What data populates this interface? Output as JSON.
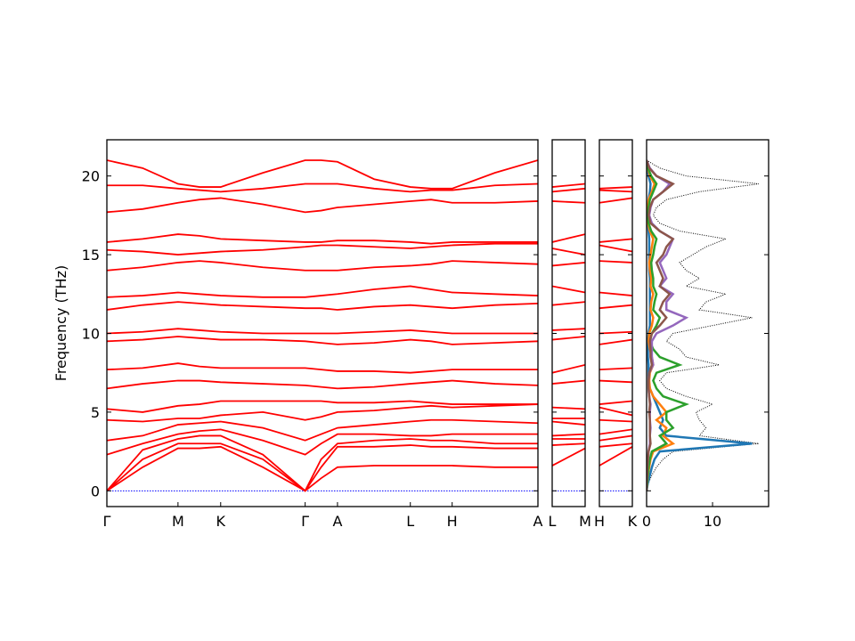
{
  "chart_data": [
    {
      "type": "band",
      "ylabel": "Frequency (THz)",
      "ylim": [
        -1.0,
        22.3
      ],
      "yticks": [
        0,
        5,
        10,
        15,
        20
      ],
      "show_ytick_labels": true,
      "xlim": [
        0,
        1
      ],
      "xticks": [
        {
          "value": 0,
          "label": "Γ"
        },
        {
          "value": 0.165,
          "label": "M"
        },
        {
          "value": 0.264,
          "label": "K"
        },
        {
          "value": 0.46,
          "label": "Γ"
        },
        {
          "value": 0.535,
          "label": "A"
        },
        {
          "value": 0.704,
          "label": "L"
        },
        {
          "value": 0.801,
          "label": "H"
        },
        {
          "value": 1.0,
          "label": "A"
        }
      ],
      "x": [
        0,
        0.083,
        0.165,
        0.215,
        0.264,
        0.362,
        0.46,
        0.497,
        0.535,
        0.62,
        0.704,
        0.752,
        0.801,
        0.9,
        1.0
      ],
      "color": "#ff0000",
      "zero_line": {
        "value": 0,
        "color": "#0000ff"
      },
      "series": [
        {
          "values": [
            0,
            1.5,
            2.7,
            2.7,
            2.8,
            1.5,
            0,
            0.8,
            1.5,
            1.6,
            1.6,
            1.6,
            1.6,
            1.5,
            1.5
          ]
        },
        {
          "values": [
            0,
            2.0,
            3.0,
            3.0,
            3.0,
            2.0,
            0,
            1.5,
            2.8,
            2.8,
            2.9,
            2.8,
            2.8,
            2.7,
            2.7
          ]
        },
        {
          "values": [
            0,
            2.6,
            3.3,
            3.5,
            3.5,
            2.3,
            0,
            2.0,
            3.0,
            3.2,
            3.3,
            3.2,
            3.2,
            3.0,
            3.0
          ]
        },
        {
          "values": [
            2.3,
            3.0,
            3.6,
            3.8,
            3.9,
            3.2,
            2.3,
            3.0,
            3.6,
            3.6,
            3.5,
            3.5,
            3.6,
            3.6,
            3.6
          ]
        },
        {
          "values": [
            3.2,
            3.5,
            4.2,
            4.3,
            4.4,
            4.0,
            3.2,
            3.6,
            4.0,
            4.2,
            4.4,
            4.5,
            4.5,
            4.4,
            4.3
          ]
        },
        {
          "values": [
            4.5,
            4.4,
            4.6,
            4.6,
            4.8,
            5.0,
            4.5,
            4.7,
            5.0,
            5.1,
            5.3,
            5.4,
            5.3,
            5.4,
            5.5
          ]
        },
        {
          "values": [
            5.2,
            5.0,
            5.4,
            5.5,
            5.7,
            5.7,
            5.7,
            5.7,
            5.6,
            5.6,
            5.7,
            5.6,
            5.5,
            5.5,
            5.5
          ]
        },
        {
          "values": [
            6.5,
            6.8,
            7.0,
            7.0,
            6.9,
            6.8,
            6.7,
            6.6,
            6.5,
            6.6,
            6.8,
            6.9,
            7.0,
            6.8,
            6.7
          ]
        },
        {
          "values": [
            7.7,
            7.8,
            8.1,
            7.9,
            7.8,
            7.8,
            7.8,
            7.7,
            7.6,
            7.6,
            7.5,
            7.6,
            7.7,
            7.7,
            7.7
          ]
        },
        {
          "values": [
            9.5,
            9.6,
            9.8,
            9.7,
            9.6,
            9.6,
            9.5,
            9.4,
            9.3,
            9.4,
            9.6,
            9.5,
            9.3,
            9.4,
            9.5
          ]
        },
        {
          "values": [
            10.0,
            10.1,
            10.3,
            10.2,
            10.1,
            10.0,
            10.0,
            10.0,
            10.0,
            10.1,
            10.2,
            10.1,
            10.0,
            10.0,
            10.0
          ]
        },
        {
          "values": [
            11.5,
            11.8,
            12.0,
            11.9,
            11.8,
            11.7,
            11.6,
            11.6,
            11.5,
            11.7,
            11.8,
            11.7,
            11.6,
            11.8,
            11.9
          ]
        },
        {
          "values": [
            12.3,
            12.4,
            12.6,
            12.5,
            12.4,
            12.3,
            12.3,
            12.4,
            12.5,
            12.8,
            13.0,
            12.8,
            12.6,
            12.5,
            12.4
          ]
        },
        {
          "values": [
            14.0,
            14.2,
            14.5,
            14.6,
            14.5,
            14.2,
            14.0,
            14.0,
            14.0,
            14.2,
            14.3,
            14.4,
            14.6,
            14.5,
            14.4
          ]
        },
        {
          "values": [
            15.3,
            15.2,
            15.0,
            15.1,
            15.2,
            15.3,
            15.5,
            15.6,
            15.6,
            15.5,
            15.4,
            15.5,
            15.6,
            15.7,
            15.7
          ]
        },
        {
          "values": [
            15.8,
            16.0,
            16.3,
            16.2,
            16.0,
            15.9,
            15.8,
            15.8,
            15.9,
            15.9,
            15.8,
            15.7,
            15.8,
            15.8,
            15.8
          ]
        },
        {
          "values": [
            17.7,
            17.9,
            18.3,
            18.5,
            18.6,
            18.2,
            17.7,
            17.8,
            18.0,
            18.2,
            18.4,
            18.5,
            18.3,
            18.3,
            18.4
          ]
        },
        {
          "values": [
            19.4,
            19.4,
            19.2,
            19.1,
            19.0,
            19.2,
            19.5,
            19.5,
            19.5,
            19.2,
            19.0,
            19.1,
            19.1,
            19.4,
            19.5
          ]
        },
        {
          "values": [
            21.0,
            20.5,
            19.5,
            19.3,
            19.3,
            20.2,
            21.0,
            21.0,
            20.9,
            19.8,
            19.3,
            19.2,
            19.2,
            20.2,
            21.0
          ]
        }
      ]
    },
    {
      "type": "band",
      "ylim": [
        -1.0,
        22.3
      ],
      "yticks": [
        0,
        5,
        10,
        15,
        20
      ],
      "show_ytick_labels": false,
      "xlim": [
        0,
        1
      ],
      "xticks": [
        {
          "value": 0,
          "label": "L"
        },
        {
          "value": 1,
          "label": "M"
        }
      ],
      "x": [
        0,
        1
      ],
      "color": "#ff0000",
      "zero_line": {
        "value": 0,
        "color": "#0000ff"
      },
      "series": [
        {
          "values": [
            1.6,
            2.7
          ]
        },
        {
          "values": [
            2.9,
            3.0
          ]
        },
        {
          "values": [
            3.3,
            3.3
          ]
        },
        {
          "values": [
            3.5,
            3.6
          ]
        },
        {
          "values": [
            4.4,
            4.2
          ]
        },
        {
          "values": [
            4.6,
            4.6
          ]
        },
        {
          "values": [
            5.3,
            5.2
          ]
        },
        {
          "values": [
            6.8,
            7.0
          ]
        },
        {
          "values": [
            7.5,
            8.0
          ]
        },
        {
          "values": [
            9.6,
            9.8
          ]
        },
        {
          "values": [
            10.2,
            10.3
          ]
        },
        {
          "values": [
            11.8,
            12.0
          ]
        },
        {
          "values": [
            13.0,
            12.6
          ]
        },
        {
          "values": [
            14.3,
            14.5
          ]
        },
        {
          "values": [
            15.4,
            15.0
          ]
        },
        {
          "values": [
            15.8,
            16.3
          ]
        },
        {
          "values": [
            18.4,
            18.3
          ]
        },
        {
          "values": [
            19.0,
            19.2
          ]
        },
        {
          "values": [
            19.3,
            19.5
          ]
        }
      ]
    },
    {
      "type": "band",
      "ylim": [
        -1.0,
        22.3
      ],
      "yticks": [
        0,
        5,
        10,
        15,
        20
      ],
      "show_ytick_labels": false,
      "xlim": [
        0,
        1
      ],
      "xticks": [
        {
          "value": 0,
          "label": "H"
        },
        {
          "value": 1,
          "label": "K"
        }
      ],
      "x": [
        0,
        1
      ],
      "color": "#ff0000",
      "zero_line": {
        "value": 0,
        "color": "#0000ff"
      },
      "series": [
        {
          "values": [
            1.6,
            2.8
          ]
        },
        {
          "values": [
            2.8,
            3.0
          ]
        },
        {
          "values": [
            3.2,
            3.5
          ]
        },
        {
          "values": [
            3.6,
            3.9
          ]
        },
        {
          "values": [
            4.5,
            4.4
          ]
        },
        {
          "values": [
            5.3,
            4.8
          ]
        },
        {
          "values": [
            5.5,
            5.7
          ]
        },
        {
          "values": [
            7.0,
            6.9
          ]
        },
        {
          "values": [
            7.7,
            7.8
          ]
        },
        {
          "values": [
            9.3,
            9.6
          ]
        },
        {
          "values": [
            10.0,
            10.1
          ]
        },
        {
          "values": [
            11.6,
            11.8
          ]
        },
        {
          "values": [
            12.6,
            12.4
          ]
        },
        {
          "values": [
            14.6,
            14.5
          ]
        },
        {
          "values": [
            15.6,
            15.2
          ]
        },
        {
          "values": [
            15.8,
            16.0
          ]
        },
        {
          "values": [
            18.3,
            18.6
          ]
        },
        {
          "values": [
            19.1,
            19.0
          ]
        },
        {
          "values": [
            19.2,
            19.3
          ]
        }
      ]
    },
    {
      "type": "dos",
      "ylim": [
        -1.0,
        22.3
      ],
      "yticks": [
        0,
        5,
        10,
        15,
        20
      ],
      "show_ytick_labels": false,
      "xlim": [
        0,
        18.5
      ],
      "xticks": [
        0,
        10
      ],
      "y": [
        0,
        0.5,
        1,
        1.5,
        2,
        2.5,
        3,
        3.5,
        4,
        4.5,
        5,
        5.5,
        6,
        6.5,
        7,
        7.5,
        8,
        8.5,
        9,
        9.5,
        10,
        10.5,
        11,
        11.5,
        12,
        12.5,
        13,
        13.5,
        14,
        14.5,
        15,
        15.5,
        16,
        16.5,
        17,
        17.5,
        18,
        18.5,
        19,
        19.5,
        20,
        20.5,
        21
      ],
      "series": [
        {
          "color": "#000000",
          "linestyle": "dotted",
          "values": [
            0,
            0.3,
            0.8,
            1.5,
            2.5,
            4,
            17,
            8,
            9,
            8,
            7.5,
            10,
            6,
            3,
            2,
            3,
            11,
            6,
            5,
            3,
            4,
            10,
            16,
            8,
            9,
            12,
            6,
            8,
            6,
            5,
            7,
            9,
            12,
            5,
            2,
            1,
            1.5,
            3,
            8,
            17,
            6,
            2,
            0
          ]
        },
        {
          "color": "#1f77b4",
          "values": [
            0,
            0.2,
            0.5,
            0.8,
            1.2,
            2,
            16,
            3,
            2,
            2.5,
            2,
            1.5,
            1,
            0.5,
            0.3,
            0.3,
            0.3,
            0.2,
            0.2,
            0.2,
            0.3,
            0.5,
            0.5,
            0.5,
            0.5,
            0.5,
            0.5,
            0.5,
            0.4,
            0.4,
            0.4,
            0.4,
            0.4,
            0.3,
            0.2,
            0.1,
            0.2,
            0.3,
            0.5,
            0.6,
            0.3,
            0.1,
            0
          ]
        },
        {
          "color": "#ff7f0e",
          "values": [
            0,
            0.1,
            0.2,
            0.4,
            0.6,
            1,
            4,
            2.5,
            3,
            1.5,
            3,
            2,
            1,
            0.5,
            0.4,
            0.5,
            1,
            0.8,
            0.5,
            0.3,
            0.4,
            0.8,
            1,
            0.6,
            0.7,
            1,
            0.6,
            0.7,
            0.5,
            0.4,
            0.6,
            0.8,
            1,
            0.5,
            0.2,
            0.1,
            0.2,
            0.3,
            0.8,
            1.2,
            0.5,
            0.2,
            0
          ]
        },
        {
          "color": "#2ca02c",
          "values": [
            0,
            0.1,
            0.2,
            0.3,
            0.5,
            0.8,
            3,
            2,
            4,
            3,
            3,
            6,
            2.5,
            1.5,
            1,
            1.5,
            5,
            2,
            1,
            0.5,
            0.8,
            1.5,
            2,
            1,
            1.2,
            1.5,
            1,
            1,
            0.8,
            0.7,
            1,
            1.2,
            1.5,
            0.7,
            0.3,
            0.2,
            0.3,
            0.5,
            1,
            1.5,
            0.7,
            0.2,
            0
          ]
        },
        {
          "color": "#9467bd",
          "values": [
            0,
            0,
            0.1,
            0.1,
            0.2,
            0.3,
            0.5,
            0.5,
            0.6,
            0.5,
            0.5,
            0.6,
            0.4,
            0.3,
            0.3,
            0.4,
            1,
            0.8,
            0.8,
            0.8,
            1.5,
            4,
            6,
            3,
            3,
            4,
            2,
            3,
            2.5,
            2,
            3,
            3.5,
            4,
            2,
            0.8,
            0.4,
            0.6,
            1,
            2.5,
            3.5,
            1.5,
            0.5,
            0
          ]
        },
        {
          "color": "#8c564b",
          "values": [
            0,
            0,
            0.1,
            0.1,
            0.2,
            0.3,
            0.6,
            0.5,
            0.5,
            0.5,
            0.4,
            0.5,
            0.4,
            0.3,
            0.3,
            0.4,
            0.8,
            0.6,
            0.6,
            0.5,
            0.8,
            2,
            3,
            2,
            2.5,
            3.5,
            2,
            2.5,
            2,
            1.5,
            2.5,
            3,
            4,
            2,
            0.6,
            0.3,
            0.5,
            1,
            2.5,
            4,
            1.5,
            0.4,
            0
          ]
        }
      ]
    }
  ]
}
